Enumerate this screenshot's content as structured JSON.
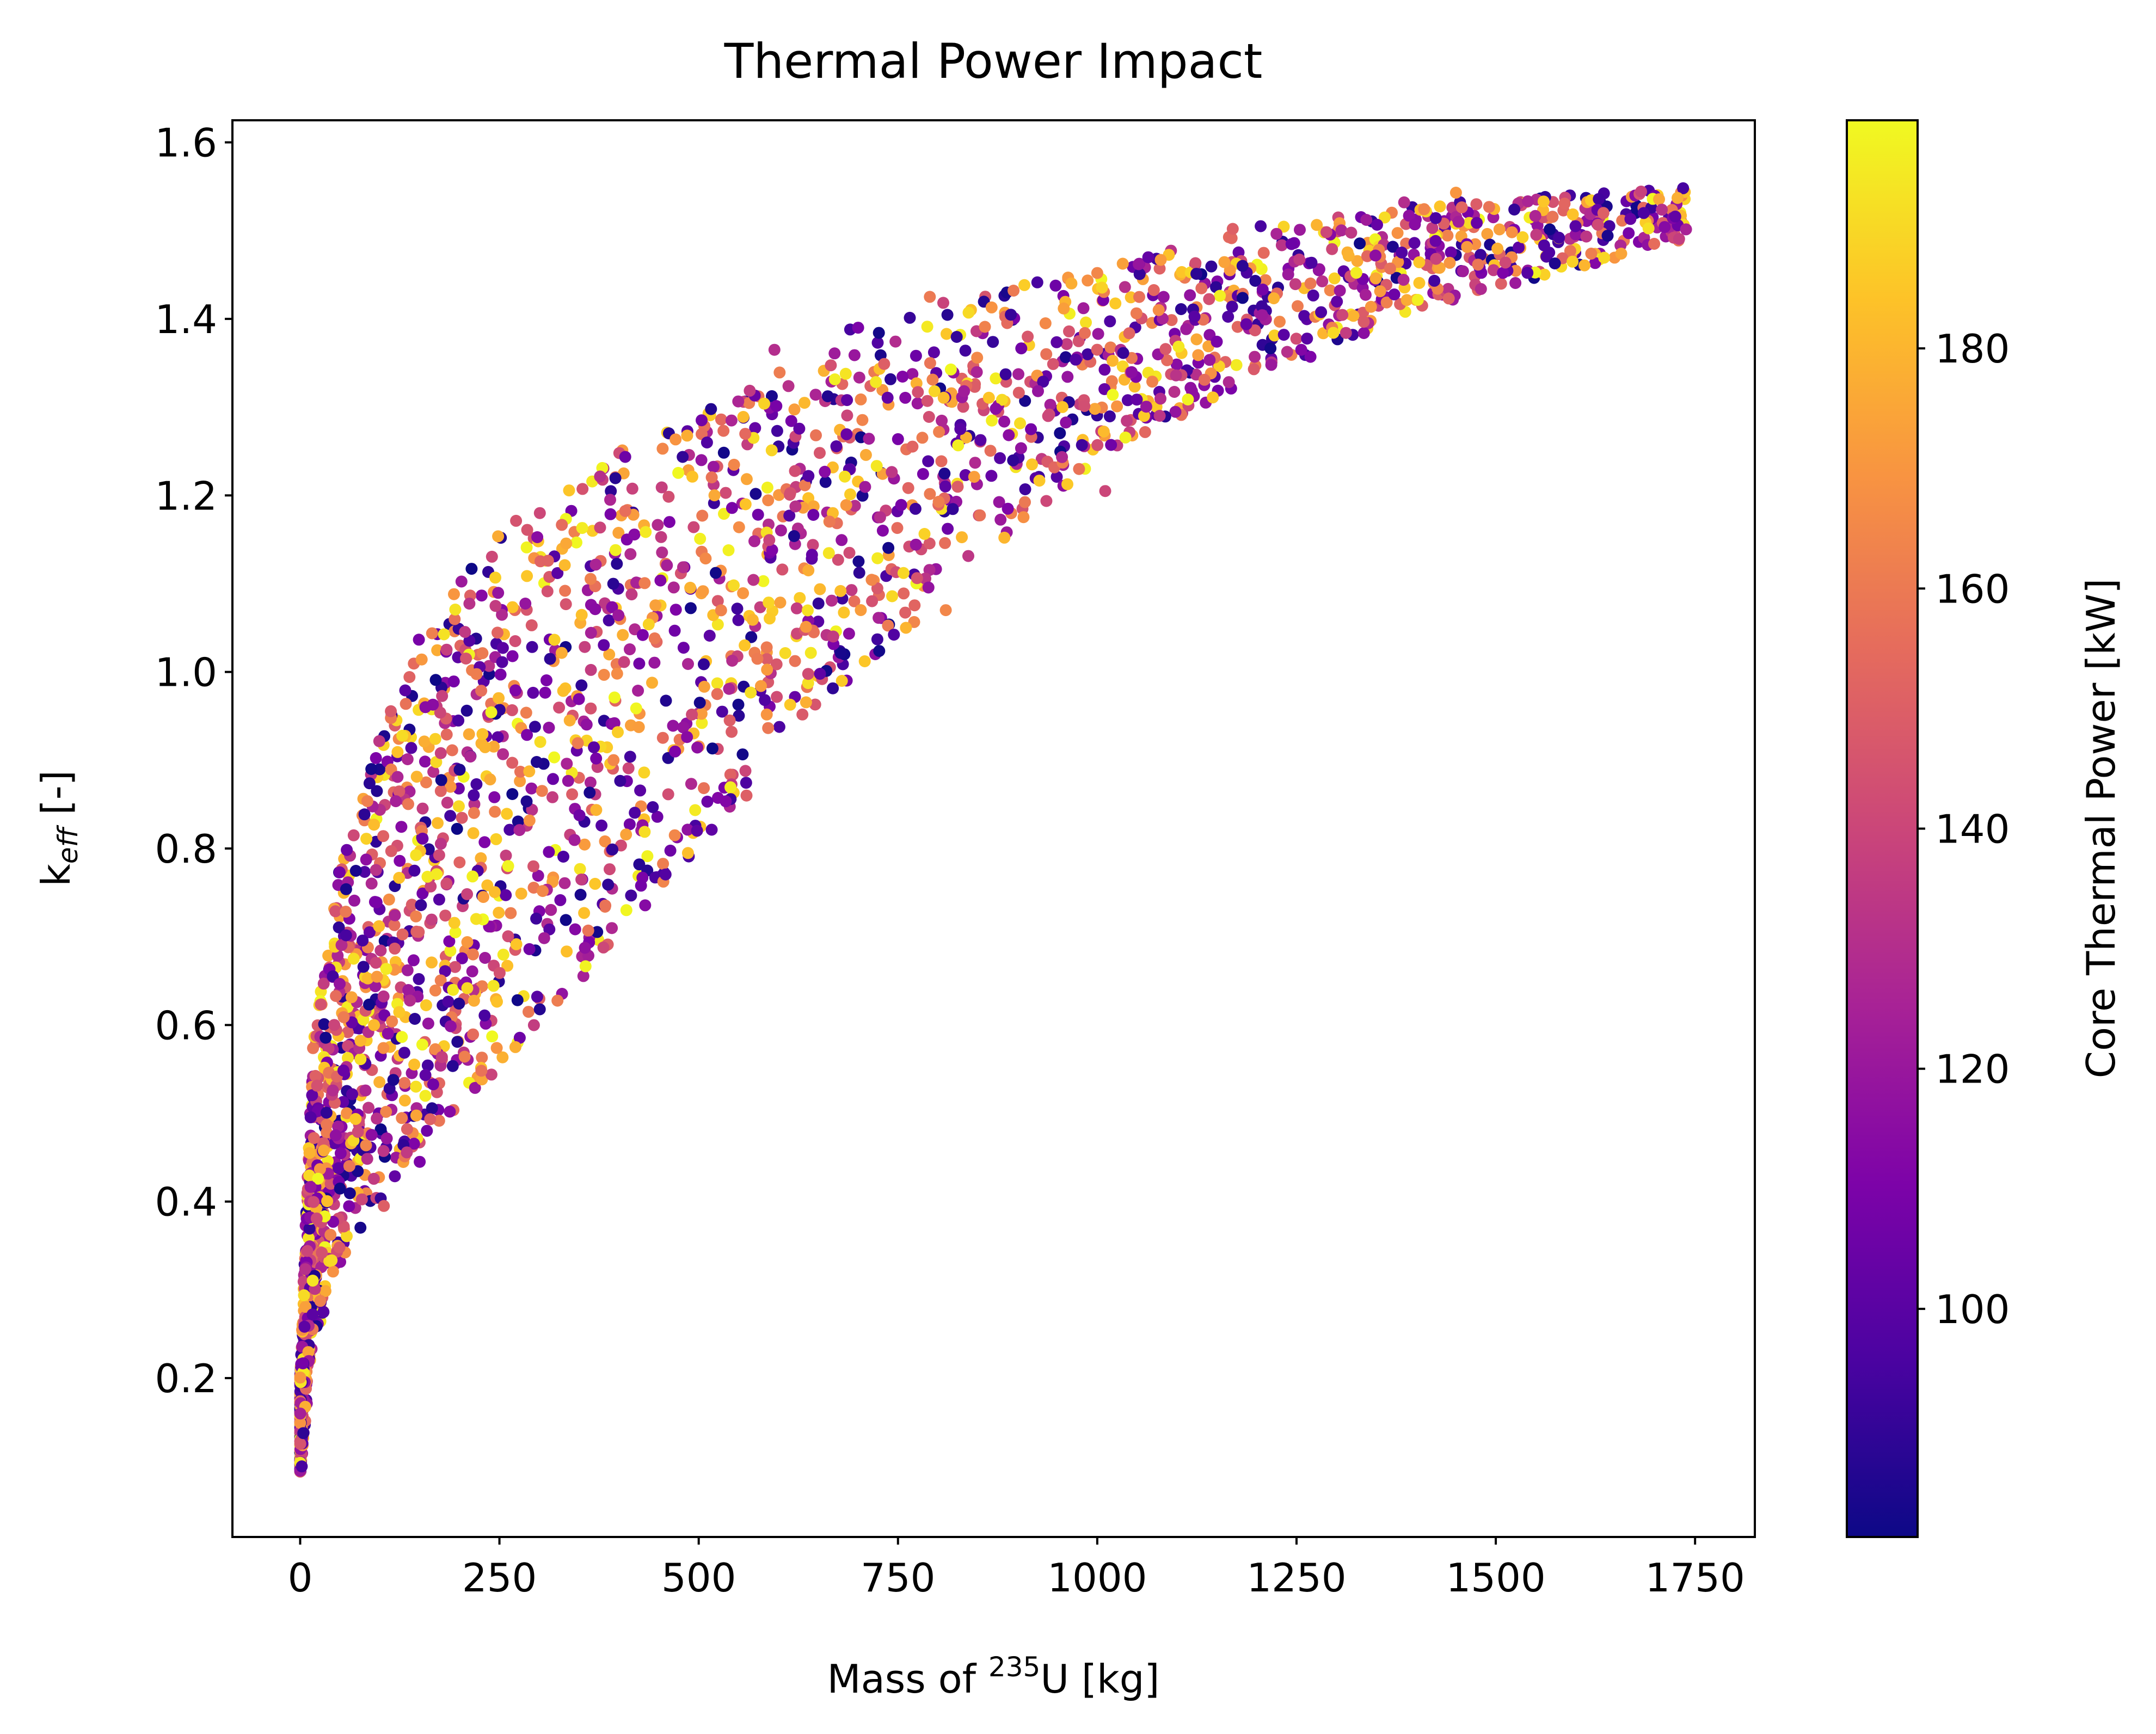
{
  "chart_data": {
    "type": "scatter",
    "title": "Thermal Power Impact",
    "xlabel": {
      "prefix": "Mass of ",
      "sup": "235",
      "suffix": "U [kg]"
    },
    "ylabel": {
      "base": "k",
      "sub": "eff",
      "suffix": " [-]"
    },
    "xlim": [
      -85,
      1825
    ],
    "ylim": [
      0.02,
      1.625
    ],
    "xticks": [
      0,
      250,
      500,
      750,
      1000,
      1250,
      1500,
      1750
    ],
    "yticks": [
      0.2,
      0.4,
      0.6,
      0.8,
      1.0,
      1.2,
      1.4,
      1.6
    ],
    "grid": false,
    "colorbar": {
      "label": "Core Thermal Power [kW]",
      "colormap": "plasma",
      "range": [
        81,
        199
      ],
      "ticks": [
        100,
        120,
        140,
        160,
        180
      ]
    },
    "envelope": {
      "upper": [
        [
          0,
          0.2
        ],
        [
          15,
          0.58
        ],
        [
          50,
          0.78
        ],
        [
          100,
          0.93
        ],
        [
          150,
          1.04
        ],
        [
          250,
          1.16
        ],
        [
          400,
          1.25
        ],
        [
          600,
          1.34
        ],
        [
          800,
          1.42
        ],
        [
          1000,
          1.46
        ],
        [
          1200,
          1.5
        ],
        [
          1400,
          1.53
        ],
        [
          1740,
          1.55
        ]
      ],
      "lower": [
        [
          0,
          0.09
        ],
        [
          15,
          0.23
        ],
        [
          50,
          0.33
        ],
        [
          100,
          0.4
        ],
        [
          150,
          0.46
        ],
        [
          250,
          0.55
        ],
        [
          400,
          0.7
        ],
        [
          500,
          0.8
        ],
        [
          600,
          0.92
        ],
        [
          800,
          1.08
        ],
        [
          1000,
          1.24
        ],
        [
          1200,
          1.33
        ],
        [
          1400,
          1.41
        ],
        [
          1740,
          1.49
        ]
      ]
    },
    "sample_points": [
      [
        0,
        0.095,
        120
      ],
      [
        2,
        0.1,
        95
      ],
      [
        105,
        0.395,
        150
      ],
      [
        150,
        0.445,
        110
      ],
      [
        270,
        0.575,
        178
      ],
      [
        1735,
        1.548,
        95
      ],
      [
        1728,
        1.537,
        178
      ],
      [
        1560,
        1.533,
        185
      ],
      [
        1635,
        1.52,
        150
      ],
      [
        1600,
        1.505,
        100
      ],
      [
        1205,
        1.505,
        95
      ],
      [
        1170,
        1.502,
        150
      ],
      [
        1450,
        1.543,
        170
      ],
      [
        1385,
        1.532,
        130
      ],
      [
        895,
        1.432,
        160
      ],
      [
        1000,
        1.452,
        165
      ],
      [
        790,
        1.425,
        160
      ],
      [
        690,
        1.388,
        95
      ],
      [
        560,
        0.86,
        150
      ],
      [
        470,
        0.815,
        165
      ],
      [
        370,
        0.76,
        185
      ],
      [
        760,
        1.05,
        180
      ],
      [
        810,
        1.07,
        165
      ],
      [
        1010,
        1.205,
        140
      ],
      [
        595,
        1.365,
        130
      ],
      [
        700,
        1.39,
        110
      ]
    ],
    "n_points": 2800
  }
}
